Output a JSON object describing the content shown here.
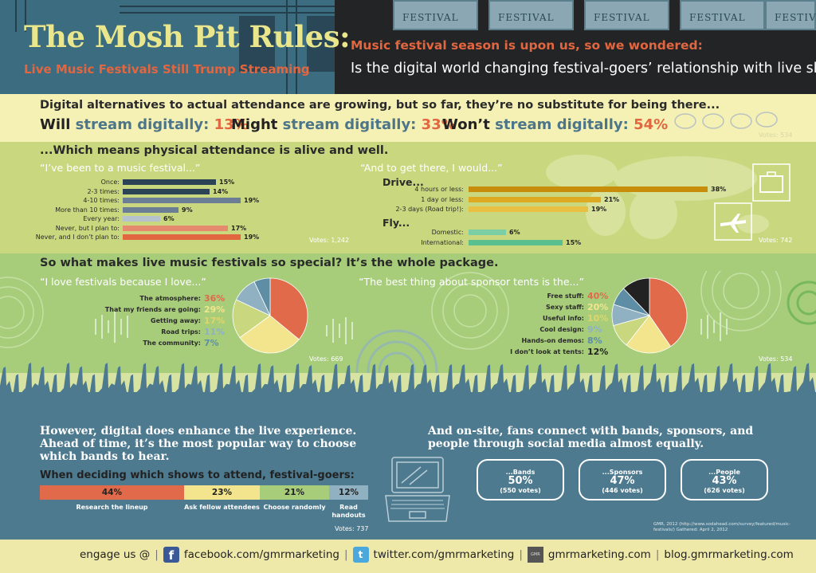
{
  "header": {
    "title": "The Mosh Pit Rules:",
    "subtitle": "Live Music Festivals Still Trump Streaming",
    "question_1": "Music festival season is upon us, so we wondered:",
    "question_2": "Is the digital world changing festival-goers’ relationship with live shows?",
    "ticket_text": "FESTIVAL"
  },
  "streaming": {
    "heading": "Digital alternatives to actual attendance are growing, but so far, they’re no substitute for being there...",
    "stats": [
      {
        "word": "Will",
        "rest": "stream digitally:",
        "pct": "13%"
      },
      {
        "word": "Might",
        "rest": "stream digitally:",
        "pct": "33%"
      },
      {
        "word": "Won’t",
        "rest": "stream digitally:",
        "pct": "54%"
      }
    ],
    "votes": "Votes: 534"
  },
  "attendance": {
    "heading": "...Which means physical attendance is alive and well.",
    "left_quote": "“I’ve been to a music festival...”",
    "left_votes": "Votes: 1,242",
    "right_quote": "“And to get there, I would...”",
    "drive_label": "Drive...",
    "fly_label": "Fly...",
    "right_votes": "Votes: 742"
  },
  "special": {
    "heading": "So what makes live music festivals so special? It’s the whole package.",
    "left_quote": "“I love festivals because I love...”",
    "left_votes": "Votes: 669",
    "right_quote": "“The best thing about sponsor tents is the...”",
    "right_votes": "Votes: 534"
  },
  "digital": {
    "left_text": "However, digital does enhance the live experience. Ahead of time, it’s the most popular way to choose which bands to hear.",
    "deciding": "When deciding which shows to attend, festival-goers:",
    "votes": "Votes: 737",
    "right_text": "And on-site, fans connect with bands, sponsors, and people through social media almost equally.",
    "phones": [
      {
        "title": "...Bands",
        "pct": "50%",
        "votes": "(550 votes)"
      },
      {
        "title": "...Sponsors",
        "pct": "47%",
        "votes": "(446 votes)"
      },
      {
        "title": "...People",
        "pct": "43%",
        "votes": "(626 votes)"
      }
    ],
    "source": "GMR, 2012 (http://www.sodahead.com/survey/featured/music-festivals/) Gathered: April 2, 2012"
  },
  "footer": {
    "engage": "engage us @",
    "facebook": "facebook.com/gmrmarketing",
    "twitter": "twitter.com/gmrmarketing",
    "gmr_icon": "GMR",
    "site": "gmrmarketing.com",
    "blog": "blog.gmrmarketing.com"
  },
  "colors": {
    "accent": "#e2663f",
    "navy": "#2c4255",
    "teal": "#4c7589",
    "gold": "#d5a011",
    "green": "#5bc08e"
  },
  "chart_data": [
    {
      "type": "bar",
      "title": "“I’ve been to a music festival...”",
      "categories": [
        "Once:",
        "2-3 times:",
        "4-10 times:",
        "More than 10 times:",
        "Every year:",
        "Never, but I plan to:",
        "Never, and I don’t plan to:"
      ],
      "values": [
        15,
        14,
        19,
        9,
        6,
        17,
        19
      ],
      "labels": [
        "15%",
        "14%",
        "19%",
        "9%",
        "6%",
        "17%",
        "19%"
      ],
      "colors": [
        "#2c4255",
        "#2c4255",
        "#6b7e95",
        "#6b7e95",
        "#b7c2cf",
        "#e68a6e",
        "#e2663f"
      ],
      "max": 19
    },
    {
      "type": "bar",
      "title": "“And to get there, I would...” — Drive...",
      "categories": [
        "4 hours or less:",
        "1 day or less:",
        "2-3 days (Road trip!):"
      ],
      "values": [
        38,
        21,
        19
      ],
      "labels": [
        "38%",
        "21%",
        "19%"
      ],
      "colors": [
        "#c98d0c",
        "#deaa22",
        "#eac044"
      ],
      "max": 38
    },
    {
      "type": "bar",
      "title": "“And to get there, I would...” — Fly...",
      "categories": [
        "Domestic:",
        "International:"
      ],
      "values": [
        6,
        15
      ],
      "labels": [
        "6%",
        "15%"
      ],
      "colors": [
        "#7ccfa4",
        "#5bc08e"
      ],
      "max": 38
    },
    {
      "type": "pie",
      "title": "“I love festivals because I love...”",
      "categories": [
        "The atmosphere:",
        "That my friends are going:",
        "Getting away:",
        "Road trips:",
        "The community:"
      ],
      "values": [
        36,
        29,
        17,
        11,
        7
      ],
      "labels": [
        "36%",
        "29%",
        "17%",
        "11%",
        "7%"
      ],
      "colors": [
        "#e06a49",
        "#f2e58d",
        "#c9d87f",
        "#8fb1c1",
        "#5e8ea5"
      ]
    },
    {
      "type": "pie",
      "title": "“The best thing about sponsor tents is the...”",
      "categories": [
        "Free stuff:",
        "Sexy staff:",
        "Useful info:",
        "Cool design:",
        "Hands-on demos:",
        "I don’t look at tents:"
      ],
      "values": [
        40,
        20,
        10,
        9,
        8,
        12
      ],
      "labels": [
        "40%",
        "20%",
        "10%",
        "9%",
        "8%",
        "12%"
      ],
      "colors": [
        "#e06a49",
        "#f2e58d",
        "#c9d87f",
        "#8fb1c1",
        "#5e8ea5",
        "#222222"
      ]
    },
    {
      "type": "bar",
      "title": "When deciding which shows to attend, festival-goers:",
      "categories": [
        "Research the lineup",
        "Ask fellow attendees",
        "Choose randomly",
        "Read handouts"
      ],
      "values": [
        44,
        23,
        21,
        12
      ],
      "labels": [
        "44%",
        "23%",
        "21%",
        "12%"
      ],
      "colors": [
        "#e06a49",
        "#f2e58d",
        "#a7cd7b",
        "#8fb1c1"
      ]
    }
  ]
}
